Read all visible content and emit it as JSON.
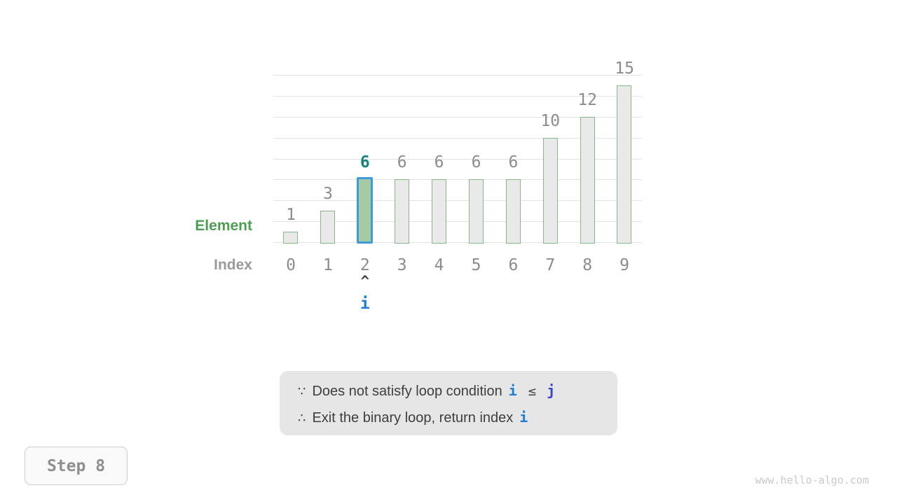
{
  "colors": {
    "grid": "#e3e3e3",
    "bar_fill": "#e9e9e9",
    "bar_border": "#85b988",
    "highlight_fill": "#a6cba4",
    "highlight_border": "#3f9cdb",
    "highlight_value": "#15837b",
    "value_label": "#8c8c8c",
    "index_label": "#8c8c8c",
    "element_label": "#4c9e52",
    "axis_label": "#9a9a9a",
    "pointer_caret": "#4a4a4a",
    "var_i": "#1d7fd4",
    "var_j": "#3642d2",
    "note_bg": "#e6e6e6",
    "note_text": "#3e3e3e"
  },
  "chart_data": {
    "type": "bar",
    "categories": [
      "0",
      "1",
      "2",
      "3",
      "4",
      "5",
      "6",
      "7",
      "8",
      "9"
    ],
    "values": [
      1,
      3,
      6,
      6,
      6,
      6,
      6,
      10,
      12,
      15
    ],
    "value_labels": [
      "1",
      "3",
      "6",
      "6",
      "6",
      "6",
      "6",
      "10",
      "12",
      "15"
    ],
    "highlight_index": 2,
    "title": "",
    "xlabel": "Index",
    "ylabel": "Element",
    "ylim": [
      0,
      16
    ],
    "grid_step": 2,
    "grid": "horizontal only, no y tick labels",
    "legend_position": "none"
  },
  "pointer": {
    "index": 2,
    "caret": "^",
    "label": "i"
  },
  "note": {
    "line1": {
      "prefix": "∵",
      "text": "Does not satisfy loop condition",
      "var1": "i",
      "op": "≤",
      "var2": "j"
    },
    "line2": {
      "prefix": "∴",
      "text": "Exit the binary loop, return index",
      "var1": "i"
    }
  },
  "step": {
    "label": "Step 8"
  },
  "footer": {
    "watermark": "www.hello-algo.com"
  }
}
